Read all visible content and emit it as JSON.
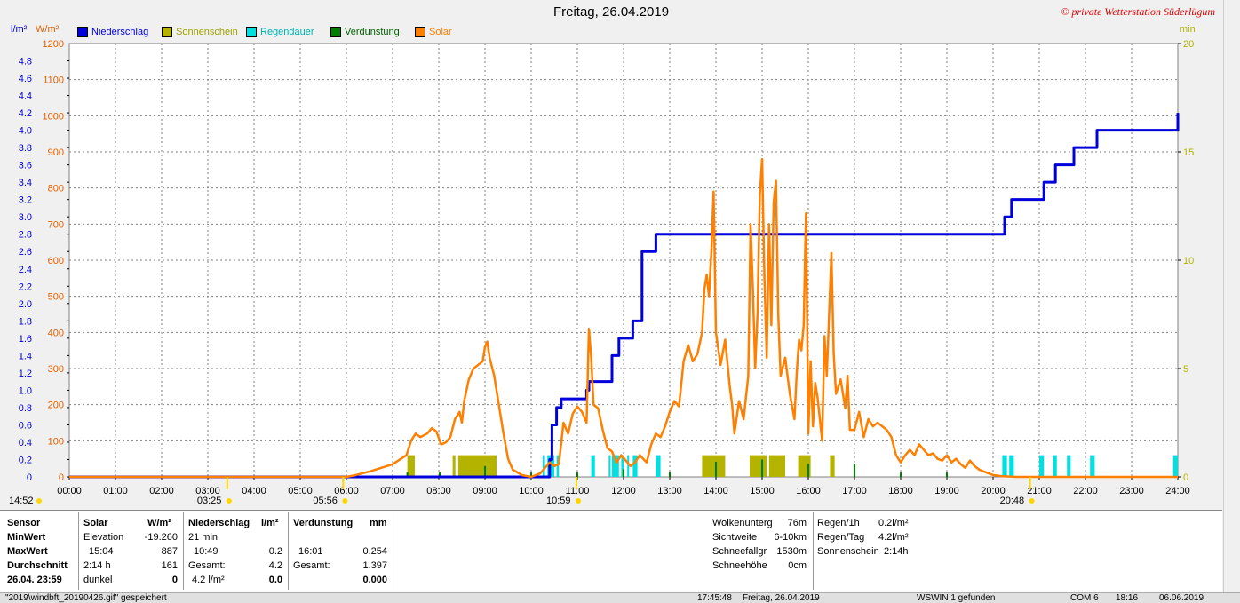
{
  "chart_data": {
    "type": "line",
    "title": "Freitag, 26.04.2019",
    "copyright": "© private Wetterstation Süderlügum",
    "left_units": [
      "l/m²",
      "W/m²"
    ],
    "right_unit": "min",
    "x_ticks": [
      "00:00",
      "01:00",
      "02:00",
      "03:00",
      "04:00",
      "05:00",
      "06:00",
      "07:00",
      "08:00",
      "09:00",
      "10:00",
      "11:00",
      "12:00",
      "13:00",
      "14:00",
      "15:00",
      "16:00",
      "17:00",
      "18:00",
      "19:00",
      "20:00",
      "21:00",
      "22:00",
      "23:00",
      "24:00"
    ],
    "y_rain_ticks": [
      "0",
      "0.2",
      "0.4",
      "0.6",
      "0.8",
      "1.0",
      "1.2",
      "1.4",
      "1.6",
      "1.8",
      "2.0",
      "2.2",
      "2.4",
      "2.6",
      "2.8",
      "3.0",
      "3.2",
      "3.4",
      "3.6",
      "3.8",
      "4.0",
      "4.2",
      "4.4",
      "4.6",
      "4.8"
    ],
    "y_solar_ticks": [
      "0",
      "100",
      "200",
      "300",
      "400",
      "500",
      "600",
      "700",
      "800",
      "900",
      "1000",
      "1100",
      "1200"
    ],
    "y_min_ticks": [
      "0",
      "5",
      "10",
      "15",
      "20"
    ],
    "xlim": [
      0,
      24
    ],
    "rain_ylim": [
      0,
      5
    ],
    "solar_ylim": [
      0,
      1200
    ],
    "min_ylim": [
      0,
      20
    ],
    "grid": true,
    "legend": [
      {
        "label": "Niederschlag",
        "color": "#0000dd"
      },
      {
        "label": "Sonnenschein",
        "color": "#b4b400"
      },
      {
        "label": "Regendauer",
        "color": "#00e0e0"
      },
      {
        "label": "Verdunstung",
        "color": "#008000"
      },
      {
        "label": "Solar",
        "color": "#ff7f00"
      }
    ],
    "series": [
      {
        "name": "Niederschlag",
        "color": "#0000dd",
        "unit": "l/m²",
        "step": true,
        "points": [
          [
            0,
            0
          ],
          [
            10.25,
            0
          ],
          [
            10.4,
            0.2
          ],
          [
            10.45,
            0.6
          ],
          [
            10.55,
            0.8
          ],
          [
            10.65,
            0.9
          ],
          [
            11.0,
            0.9
          ],
          [
            11.2,
            1.0
          ],
          [
            11.25,
            1.1
          ],
          [
            11.7,
            1.1
          ],
          [
            11.75,
            1.4
          ],
          [
            11.85,
            1.4
          ],
          [
            11.9,
            1.6
          ],
          [
            12.15,
            1.6
          ],
          [
            12.2,
            1.8
          ],
          [
            12.35,
            1.8
          ],
          [
            12.4,
            2.6
          ],
          [
            12.65,
            2.6
          ],
          [
            12.7,
            2.8
          ],
          [
            20.2,
            2.8
          ],
          [
            20.25,
            3.0
          ],
          [
            20.35,
            3.0
          ],
          [
            20.4,
            3.2
          ],
          [
            21.05,
            3.2
          ],
          [
            21.1,
            3.4
          ],
          [
            21.3,
            3.4
          ],
          [
            21.35,
            3.6
          ],
          [
            21.7,
            3.6
          ],
          [
            21.75,
            3.8
          ],
          [
            22.2,
            3.8
          ],
          [
            22.25,
            4.0
          ],
          [
            23.95,
            4.0
          ],
          [
            24,
            4.2
          ]
        ]
      },
      {
        "name": "Solar",
        "color": "#ff7f00",
        "unit": "W/m²",
        "points": [
          [
            0,
            0
          ],
          [
            6.0,
            0
          ],
          [
            6.2,
            5
          ],
          [
            6.5,
            15
          ],
          [
            7.0,
            35
          ],
          [
            7.3,
            60
          ],
          [
            7.4,
            100
          ],
          [
            7.5,
            120
          ],
          [
            7.6,
            110
          ],
          [
            7.75,
            120
          ],
          [
            7.85,
            135
          ],
          [
            7.95,
            125
          ],
          [
            8.05,
            90
          ],
          [
            8.15,
            95
          ],
          [
            8.25,
            110
          ],
          [
            8.35,
            160
          ],
          [
            8.45,
            180
          ],
          [
            8.5,
            150
          ],
          [
            8.55,
            210
          ],
          [
            8.65,
            270
          ],
          [
            8.75,
            300
          ],
          [
            8.85,
            310
          ],
          [
            8.95,
            320
          ],
          [
            9.0,
            360
          ],
          [
            9.05,
            375
          ],
          [
            9.1,
            330
          ],
          [
            9.2,
            280
          ],
          [
            9.3,
            200
          ],
          [
            9.4,
            120
          ],
          [
            9.5,
            50
          ],
          [
            9.6,
            20
          ],
          [
            9.8,
            5
          ],
          [
            10.0,
            0
          ],
          [
            10.2,
            10
          ],
          [
            10.4,
            40
          ],
          [
            10.5,
            30
          ],
          [
            10.6,
            35
          ],
          [
            10.7,
            150
          ],
          [
            10.8,
            120
          ],
          [
            10.9,
            175
          ],
          [
            11.0,
            195
          ],
          [
            11.1,
            180
          ],
          [
            11.2,
            150
          ],
          [
            11.25,
            410
          ],
          [
            11.3,
            330
          ],
          [
            11.35,
            200
          ],
          [
            11.45,
            190
          ],
          [
            11.55,
            130
          ],
          [
            11.65,
            80
          ],
          [
            11.75,
            70
          ],
          [
            11.85,
            40
          ],
          [
            11.95,
            60
          ],
          [
            12.05,
            45
          ],
          [
            12.15,
            30
          ],
          [
            12.25,
            40
          ],
          [
            12.35,
            60
          ],
          [
            12.5,
            40
          ],
          [
            12.6,
            90
          ],
          [
            12.7,
            120
          ],
          [
            12.8,
            110
          ],
          [
            12.9,
            140
          ],
          [
            13.0,
            180
          ],
          [
            13.1,
            210
          ],
          [
            13.2,
            195
          ],
          [
            13.3,
            320
          ],
          [
            13.4,
            365
          ],
          [
            13.5,
            320
          ],
          [
            13.6,
            340
          ],
          [
            13.7,
            400
          ],
          [
            13.75,
            520
          ],
          [
            13.8,
            560
          ],
          [
            13.85,
            500
          ],
          [
            13.9,
            620
          ],
          [
            13.95,
            790
          ],
          [
            14.0,
            400
          ],
          [
            14.1,
            310
          ],
          [
            14.2,
            380
          ],
          [
            14.3,
            250
          ],
          [
            14.35,
            200
          ],
          [
            14.4,
            120
          ],
          [
            14.5,
            210
          ],
          [
            14.6,
            160
          ],
          [
            14.7,
            280
          ],
          [
            14.75,
            700
          ],
          [
            14.8,
            520
          ],
          [
            14.85,
            300
          ],
          [
            14.9,
            450
          ],
          [
            14.95,
            780
          ],
          [
            15.0,
            880
          ],
          [
            15.05,
            550
          ],
          [
            15.1,
            330
          ],
          [
            15.15,
            700
          ],
          [
            15.2,
            420
          ],
          [
            15.25,
            760
          ],
          [
            15.3,
            820
          ],
          [
            15.35,
            450
          ],
          [
            15.4,
            280
          ],
          [
            15.5,
            330
          ],
          [
            15.6,
            230
          ],
          [
            15.7,
            160
          ],
          [
            15.75,
            290
          ],
          [
            15.8,
            380
          ],
          [
            15.85,
            350
          ],
          [
            15.9,
            420
          ],
          [
            15.95,
            730
          ],
          [
            16.0,
            120
          ],
          [
            16.05,
            320
          ],
          [
            16.1,
            140
          ],
          [
            16.15,
            260
          ],
          [
            16.2,
            220
          ],
          [
            16.3,
            100
          ],
          [
            16.35,
            390
          ],
          [
            16.4,
            280
          ],
          [
            16.5,
            620
          ],
          [
            16.55,
            340
          ],
          [
            16.6,
            230
          ],
          [
            16.7,
            270
          ],
          [
            16.8,
            190
          ],
          [
            16.85,
            280
          ],
          [
            16.9,
            130
          ],
          [
            17.0,
            130
          ],
          [
            17.1,
            180
          ],
          [
            17.2,
            110
          ],
          [
            17.3,
            160
          ],
          [
            17.4,
            140
          ],
          [
            17.5,
            150
          ],
          [
            17.6,
            140
          ],
          [
            17.7,
            130
          ],
          [
            17.8,
            110
          ],
          [
            17.9,
            60
          ],
          [
            18.0,
            40
          ],
          [
            18.1,
            60
          ],
          [
            18.2,
            75
          ],
          [
            18.3,
            60
          ],
          [
            18.4,
            90
          ],
          [
            18.5,
            75
          ],
          [
            18.6,
            60
          ],
          [
            18.7,
            65
          ],
          [
            18.8,
            50
          ],
          [
            18.9,
            45
          ],
          [
            19.0,
            60
          ],
          [
            19.1,
            40
          ],
          [
            19.2,
            50
          ],
          [
            19.3,
            35
          ],
          [
            19.4,
            25
          ],
          [
            19.5,
            45
          ],
          [
            19.6,
            30
          ],
          [
            19.7,
            20
          ],
          [
            19.8,
            15
          ],
          [
            19.9,
            10
          ],
          [
            20.0,
            5
          ],
          [
            20.2,
            2
          ],
          [
            20.5,
            0
          ],
          [
            24,
            0
          ]
        ]
      },
      {
        "name": "Sonnenschein",
        "color": "#b4b400",
        "unit": "min",
        "bars": [
          [
            7.32,
            7.48
          ],
          [
            8.3,
            8.36
          ],
          [
            8.42,
            9.25
          ],
          [
            15.0,
            15.05
          ],
          [
            13.7,
            14.2
          ],
          [
            14.73,
            15.1
          ],
          [
            15.15,
            15.5
          ],
          [
            15.78,
            16.05
          ],
          [
            16.47,
            16.57
          ]
        ],
        "heights": [
          1,
          1,
          1,
          1,
          1,
          1,
          1,
          1,
          1
        ]
      },
      {
        "name": "Regendauer",
        "color": "#00e0e0",
        "unit": "min",
        "bars": [
          [
            10.25,
            10.3
          ],
          [
            10.35,
            10.5
          ],
          [
            10.55,
            10.6
          ],
          [
            11.3,
            11.38
          ],
          [
            11.68,
            11.72
          ],
          [
            11.75,
            11.9
          ],
          [
            11.95,
            12.0
          ],
          [
            12.08,
            12.12
          ],
          [
            12.2,
            12.3
          ],
          [
            12.7,
            12.8
          ],
          [
            20.2,
            20.3
          ],
          [
            20.35,
            20.45
          ],
          [
            21.0,
            21.1
          ],
          [
            21.3,
            21.38
          ],
          [
            21.6,
            21.68
          ],
          [
            22.1,
            22.2
          ],
          [
            23.9,
            24.0
          ]
        ],
        "heights": [
          1,
          1,
          1,
          1,
          1,
          1,
          1,
          1,
          1,
          1,
          1,
          1,
          1,
          1,
          1,
          1,
          1
        ]
      },
      {
        "name": "Verdunstung",
        "color": "#008000",
        "unit": "min",
        "bars": [
          [
            7.3,
            7.34
          ],
          [
            8.0,
            8.04
          ],
          [
            8.98,
            9.02
          ],
          [
            9.98,
            10.02
          ],
          [
            10.98,
            11.02
          ],
          [
            11.98,
            12.02
          ],
          [
            12.98,
            13.02
          ],
          [
            13.98,
            14.02
          ],
          [
            14.98,
            15.02
          ],
          [
            15.98,
            16.02
          ],
          [
            16.98,
            17.02
          ],
          [
            17.98,
            18.02
          ],
          [
            18.98,
            19.02
          ]
        ],
        "heights": [
          0.2,
          0.2,
          0.5,
          0.2,
          0.2,
          0.35,
          0.2,
          0.7,
          0.8,
          0.6,
          0.6,
          0.2,
          0.2
        ]
      }
    ],
    "markers": [
      {
        "label": "14:52",
        "color": "#ffd700",
        "pos": "left-edge"
      },
      {
        "label": "03:25",
        "color": "#ffd700",
        "time": 3.42
      },
      {
        "label": "05:56",
        "color": "#ffd700",
        "time": 5.93
      },
      {
        "label": "10:59",
        "color": "#ffd700",
        "time": 10.98
      },
      {
        "label": "20:48",
        "color": "#ffd700",
        "time": 20.8
      }
    ]
  },
  "table": {
    "h_sensor": "Sensor",
    "h_solar": "Solar",
    "h_solar_unit": "W/m²",
    "h_rain": "Niederschlag",
    "h_rain_unit": "l/m²",
    "h_evap": "Verdunstung",
    "h_evap_unit": "mm",
    "r_min": "MinWert",
    "r_max": "MaxWert",
    "r_avg": "Durchschnitt",
    "r_date": "26.04. 23:59",
    "solar_elev_label": "Elevation",
    "solar_elev": "-19.260",
    "solar_max_time": "15:04",
    "solar_max": "887",
    "solar_sun_time": "2:14 h",
    "solar_avg": "161",
    "solar_dark_label": "dunkel",
    "solar_dark": "0",
    "rain_min": "21 min.",
    "rain_max_time": "10:49",
    "rain_max": "0.2",
    "rain_total_label": "Gesamt:",
    "rain_total": "4.2",
    "rain_last": "4.2 l/m²",
    "rain_last_val": "0.0",
    "evap_max_time": "16:01",
    "evap_max": "0.254",
    "evap_total_label": "Gesamt:",
    "evap_total": "1.397",
    "evap_last": "0.000",
    "wolken_label": "Wolkenunterg",
    "wolken": "76m",
    "sicht_label": "Sichtweite",
    "sicht": "6-10km",
    "schneefall_label": "Schneefallgr",
    "schneefall": "1530m",
    "schnee_label": "Schneehöhe",
    "schnee": "0cm",
    "regen1h_label": "Regen/1h",
    "regen1h": "0.2l/m²",
    "regentag_label": "Regen/Tag",
    "regentag": "4.2l/m²",
    "sonne_label": "Sonnenschein",
    "sonne": "2:14h"
  },
  "status": {
    "file": "\"2019\\windbft_20190426.gif\" gespeichert",
    "time": "17:45:48",
    "date": "Freitag, 26.04.2019",
    "usb": "WSWIN 1 gefunden",
    "com": "COM 6",
    "clock": "18:16",
    "today": "06.06.2019"
  }
}
